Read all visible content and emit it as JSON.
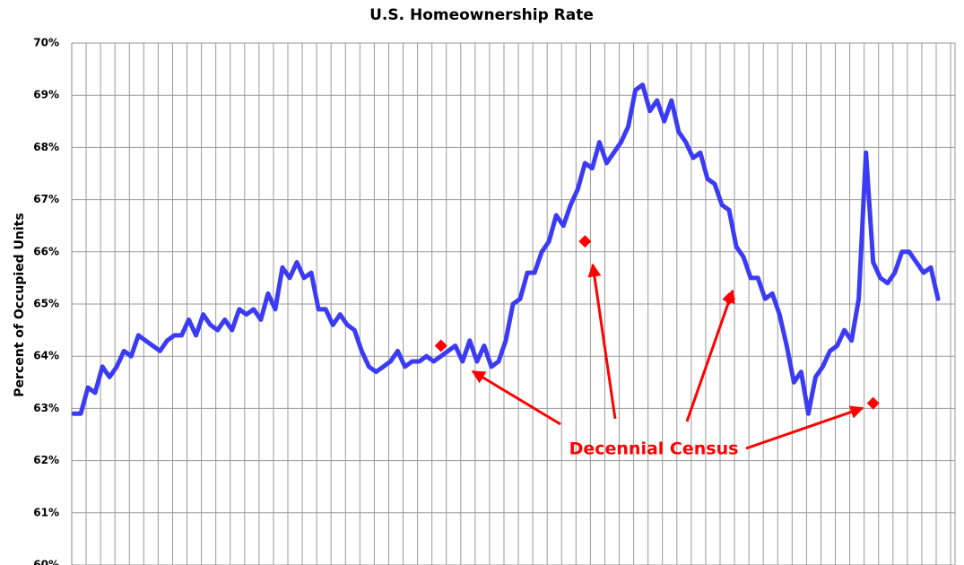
{
  "chart_data": {
    "type": "line",
    "title": "U.S. Homeownership Rate",
    "y_label": "Percent of Occupied Units",
    "annotation": "Decennial Census",
    "ylim": [
      60,
      70
    ],
    "yticks": [
      {
        "value": 60,
        "label": "60%"
      },
      {
        "value": 61,
        "label": "61%"
      },
      {
        "value": 62,
        "label": "62%"
      },
      {
        "value": 63,
        "label": "63%"
      },
      {
        "value": 64,
        "label": "64%"
      },
      {
        "value": 65,
        "label": "65%"
      },
      {
        "value": 66,
        "label": "66%"
      },
      {
        "value": 67,
        "label": "67%"
      },
      {
        "value": 68,
        "label": "68%"
      },
      {
        "value": 69,
        "label": "69%"
      },
      {
        "value": 70,
        "label": "70%"
      }
    ],
    "grid": true,
    "series": [
      {
        "color": "#3b3bf5",
        "values": [
          62.9,
          62.9,
          63.4,
          63.3,
          63.8,
          63.6,
          63.8,
          64.1,
          64.0,
          64.4,
          64.3,
          64.2,
          64.1,
          64.3,
          64.4,
          64.4,
          64.7,
          64.4,
          64.8,
          64.6,
          64.5,
          64.7,
          64.5,
          64.9,
          64.8,
          64.9,
          64.7,
          65.2,
          64.9,
          65.7,
          65.5,
          65.8,
          65.5,
          65.6,
          64.9,
          64.9,
          64.6,
          64.8,
          64.6,
          64.5,
          64.1,
          63.8,
          63.7,
          63.8,
          63.9,
          64.1,
          63.8,
          63.9,
          63.9,
          64.0,
          63.9,
          64.0,
          64.1,
          64.2,
          63.9,
          64.3,
          63.9,
          64.2,
          63.8,
          63.9,
          64.3,
          65.0,
          65.1,
          65.6,
          65.6,
          66.0,
          66.2,
          66.7,
          66.5,
          66.9,
          67.2,
          67.7,
          67.6,
          68.1,
          67.7,
          67.9,
          68.1,
          68.4,
          69.1,
          69.2,
          68.7,
          68.9,
          68.5,
          68.9,
          68.3,
          68.1,
          67.8,
          67.9,
          67.4,
          67.3,
          66.9,
          66.8,
          66.1,
          65.9,
          65.5,
          65.5,
          65.1,
          65.2,
          64.8,
          64.2,
          63.5,
          63.7,
          62.9,
          63.6,
          63.8,
          64.1,
          64.2,
          64.5,
          64.3,
          65.1,
          67.9,
          65.8,
          65.5,
          65.4,
          65.6,
          66.0,
          66.0,
          65.8,
          65.6,
          65.7,
          65.1
        ]
      },
      {
        "color": "#ff0000",
        "marker": "diamond",
        "values": [
          null,
          null,
          null,
          null,
          null,
          null,
          null,
          null,
          null,
          null,
          null,
          null,
          null,
          null,
          null,
          null,
          null,
          null,
          null,
          null,
          null,
          null,
          null,
          null,
          null,
          null,
          null,
          null,
          null,
          null,
          null,
          null,
          null,
          null,
          null,
          null,
          null,
          null,
          null,
          null,
          null,
          null,
          null,
          null,
          null,
          null,
          null,
          null,
          null,
          null,
          null,
          64.2,
          null,
          null,
          null,
          null,
          null,
          null,
          null,
          null,
          null,
          null,
          null,
          null,
          null,
          null,
          null,
          null,
          null,
          null,
          null,
          66.2,
          null,
          null,
          null,
          null,
          null,
          null,
          null,
          null,
          null,
          null,
          null,
          null,
          null,
          null,
          null,
          null,
          null,
          null,
          null,
          65.1,
          null,
          null,
          null,
          null,
          null,
          null,
          null,
          null,
          null,
          null,
          null,
          null,
          null,
          null,
          null,
          null,
          null,
          null,
          null,
          63.1,
          null,
          null,
          null,
          null,
          null,
          null,
          null,
          null,
          null
        ]
      }
    ]
  }
}
